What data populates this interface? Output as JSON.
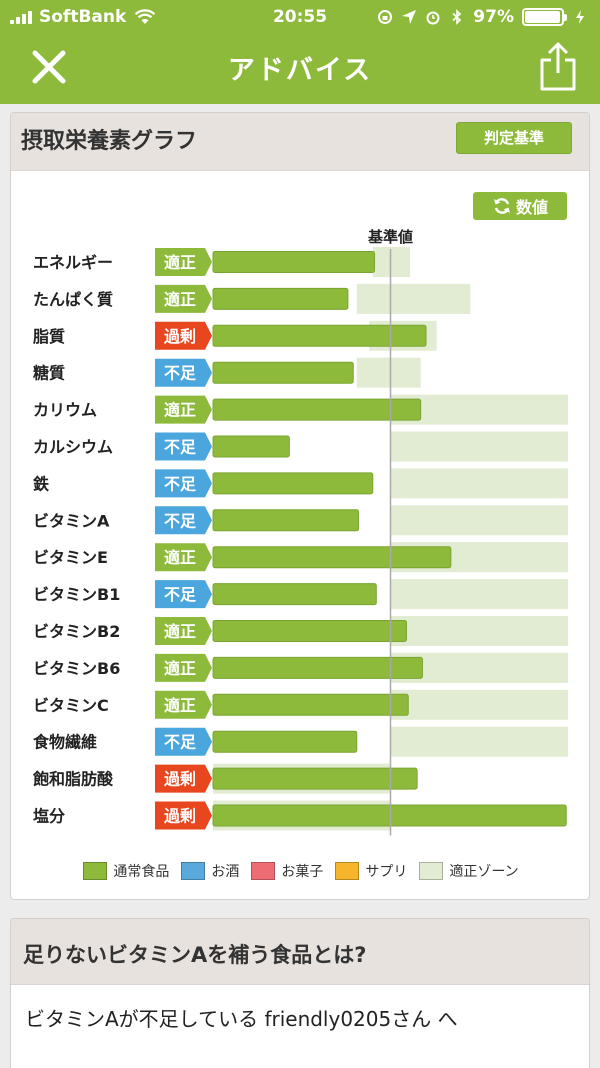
{
  "status_bar": {
    "carrier": "SoftBank",
    "time": "20:55",
    "battery": "97%"
  },
  "nav": {
    "title": "アドバイス",
    "close_icon": "close-icon",
    "share_icon": "share-icon"
  },
  "card": {
    "title": "摂取栄養素グラフ",
    "criteria_button": "判定基準",
    "value_button": "数値",
    "value_button_icon": "refresh-icon"
  },
  "chart_data": {
    "type": "bar",
    "reference_label": "基準値",
    "categories": [
      "エネルギー",
      "たんぱく質",
      "脂質",
      "糖質",
      "カリウム",
      "カルシウム",
      "鉄",
      "ビタミンA",
      "ビタミンE",
      "ビタミンB1",
      "ビタミンB2",
      "ビタミンB6",
      "ビタミンC",
      "食物繊維",
      "飽和脂肪酸",
      "塩分"
    ],
    "judgments": [
      "適正",
      "適正",
      "過剰",
      "不足",
      "適正",
      "不足",
      "不足",
      "不足",
      "適正",
      "不足",
      "適正",
      "適正",
      "適正",
      "不足",
      "過剰",
      "過剰"
    ],
    "values_percent_of_reference": [
      91,
      76,
      120,
      79,
      117,
      43,
      90,
      82,
      134,
      92,
      109,
      118,
      110,
      81,
      115,
      199
    ],
    "optimal_zone_percent": [
      [
        90,
        111
      ],
      [
        81,
        145
      ],
      [
        88,
        126
      ],
      [
        81,
        117
      ],
      [
        100,
        200
      ],
      [
        100,
        200
      ],
      [
        100,
        200
      ],
      [
        100,
        200
      ],
      [
        100,
        200
      ],
      [
        100,
        200
      ],
      [
        100,
        200
      ],
      [
        100,
        200
      ],
      [
        100,
        200
      ],
      [
        100,
        200
      ],
      [
        0,
        100
      ],
      [
        0,
        100
      ]
    ],
    "x_reference": 100,
    "xlim": [
      0,
      200
    ],
    "judgment_colors": {
      "適正": "#8dba3b",
      "不足": "#4aa6dc",
      "過剰": "#e8461e"
    },
    "legend": [
      {
        "label": "通常食品",
        "color": "#8dba3b"
      },
      {
        "label": "お酒",
        "color": "#5aa9dc"
      },
      {
        "label": "お菓子",
        "color": "#ee6c74"
      },
      {
        "label": "サプリ",
        "color": "#f7b52b"
      },
      {
        "label": "適正ゾーン",
        "color": "#e2ecd3"
      }
    ]
  },
  "card2": {
    "title": "足りないビタミンAを補う食品とは?",
    "body": "ビタミンAが不足している friendly0205さん へ"
  }
}
